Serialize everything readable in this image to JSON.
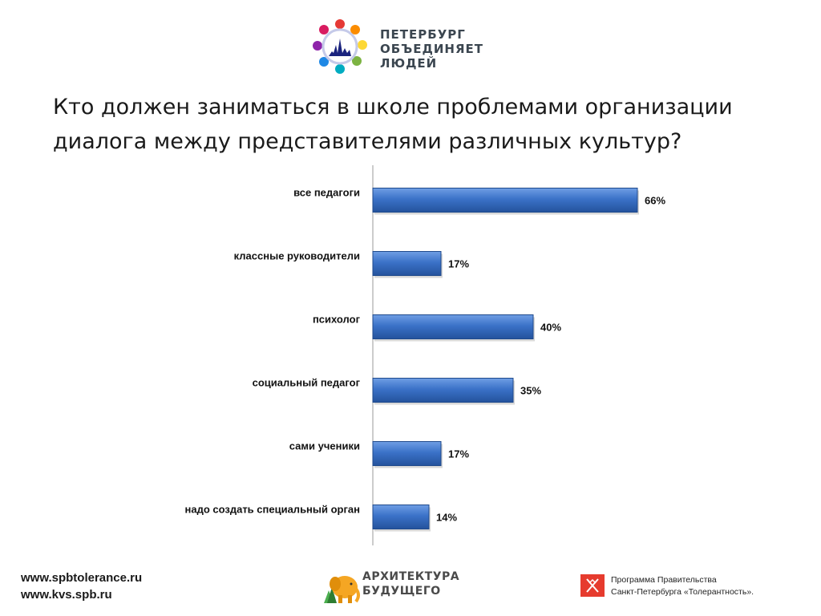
{
  "logo": {
    "line1": "ПЕТЕРБУРГ",
    "line2": "ОБЪЕДИНЯЕТ",
    "line3": "ЛЮДЕЙ"
  },
  "title": "Кто должен заниматься в школе проблемами организации диалога между представителями различных культур?",
  "chart_data": {
    "type": "bar",
    "orientation": "horizontal",
    "categories": [
      "все педагоги",
      "классные руководители",
      "психолог",
      "социальный педагог",
      "сами ученики",
      "надо создать специальный орган"
    ],
    "values": [
      66,
      17,
      40,
      35,
      17,
      14
    ],
    "data_labels": [
      "66%",
      "17%",
      "40%",
      "35%",
      "17%",
      "14%"
    ],
    "unit": "%",
    "xlim": [
      0,
      100
    ],
    "grid": false,
    "legend": "none",
    "bar_color": "#3a6fc4"
  },
  "footer": {
    "link1": "www.spbtolerance.ru",
    "link2": "www.kvs.spb.ru",
    "arch_line1": "АРХИТЕКТУРА",
    "arch_line2": "БУДУЩЕГО",
    "program_line1": "Программа Правительства",
    "program_line2": "Санкт-Петербурга «Толерантность»."
  }
}
